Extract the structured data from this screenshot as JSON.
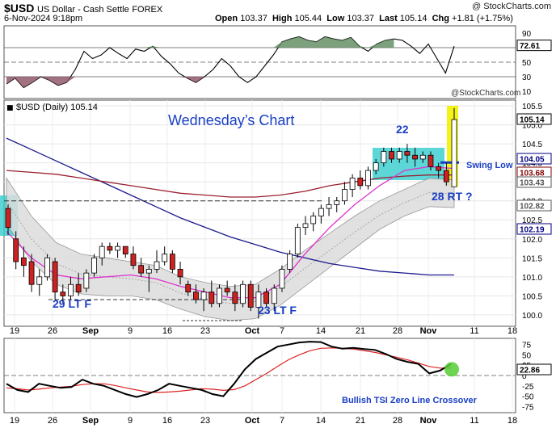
{
  "header": {
    "symbol": "$USD",
    "name": "US Dollar - Cash Settle",
    "exchange": "FOREX",
    "date": "6-Nov-2024 9:18pm",
    "logo": "@ StockCharts.com",
    "open_label": "Open",
    "open": "103.37",
    "high_label": "High",
    "high": "105.44",
    "low_label": "Low",
    "low": "103.37",
    "last_label": "Last",
    "last": "105.14",
    "chg_label": "Chg",
    "chg": "+1.81 (+1.75%)"
  },
  "top_panel": {
    "badge": "72.61",
    "y_ticks": [
      "90",
      "70",
      "50",
      "30",
      "10"
    ],
    "watermark": "@StockCharts.com"
  },
  "main_panel": {
    "legend": "$USD (Daily) 105.14",
    "annotations": {
      "title": "Wednesday’s Chart",
      "a22": "22",
      "swing_low": "Swing Low",
      "rt28": "28 RT ?",
      "ltf29": "29 LT F",
      "ltf23": "23 LT F"
    },
    "price_badges": [
      {
        "value": "105.14",
        "bg": "#ffffff",
        "fg": "#000000"
      },
      {
        "value": "104.05",
        "bg": "#ffffff",
        "fg": "#000080"
      },
      {
        "value": "103.68",
        "bg": "#ffffff",
        "fg": "#800000"
      },
      {
        "value": "103.43",
        "bg": "#ffffff",
        "fg": "#555555"
      },
      {
        "value": "102.82",
        "bg": "#ffffff",
        "fg": "#555555"
      },
      {
        "value": "102.19",
        "bg": "#ffffff",
        "fg": "#000080"
      }
    ]
  },
  "bottom_panel": {
    "badge": "22.86",
    "y_ticks": [
      "75",
      "50",
      "25",
      "0",
      "-25",
      "-50",
      "-75"
    ],
    "annotation": "Bullish TSI Zero Line Crossover"
  },
  "x_axis_labels": [
    "19",
    "26",
    "Sep",
    "9",
    "16",
    "23",
    "Oct",
    "7",
    "14",
    "21",
    "28",
    "Nov",
    "11",
    "18"
  ],
  "colors": {
    "up_candle": "#ffffff",
    "down_candle": "#cc2222",
    "annotation_blue": "#1a3fc4",
    "ma_blue": "#1a1a8c",
    "ma_red": "#9a2030",
    "ma_pink": "#dd33cc",
    "band_fill": "#dcdcdc",
    "box_cyan": "#33cccc",
    "box_yellow": "#f2f200",
    "tsi_green": "#55cc33"
  },
  "chart_data": {
    "type": "candlestick",
    "main_y_ticks": [
      105.5,
      105.0,
      104.5,
      104.0,
      103.5,
      103.0,
      102.5,
      102.0,
      101.5,
      101.0,
      100.5,
      100.0
    ],
    "candles": [
      [
        102.8,
        102.9,
        102.1,
        102.3
      ],
      [
        102.0,
        102.2,
        101.2,
        101.4
      ],
      [
        101.5,
        101.8,
        101.0,
        101.3
      ],
      [
        101.4,
        101.6,
        100.6,
        100.8
      ],
      [
        100.8,
        101.2,
        100.5,
        101.0
      ],
      [
        101.0,
        101.6,
        100.9,
        101.5
      ],
      [
        101.4,
        101.5,
        100.4,
        100.6
      ],
      [
        100.6,
        100.8,
        100.3,
        100.5
      ],
      [
        100.5,
        101.0,
        100.4,
        100.8
      ],
      [
        100.8,
        101.1,
        100.5,
        100.6
      ],
      [
        100.7,
        101.2,
        100.6,
        101.1
      ],
      [
        101.1,
        101.6,
        101.0,
        101.5
      ],
      [
        101.5,
        101.9,
        101.3,
        101.8
      ],
      [
        101.8,
        101.9,
        101.6,
        101.7
      ],
      [
        101.7,
        101.9,
        101.5,
        101.8
      ],
      [
        101.8,
        101.8,
        101.5,
        101.6
      ],
      [
        101.6,
        101.8,
        101.2,
        101.3
      ],
      [
        101.3,
        101.5,
        101.0,
        101.1
      ],
      [
        101.1,
        101.3,
        100.6,
        101.2
      ],
      [
        101.2,
        101.7,
        101.1,
        101.4
      ],
      [
        101.4,
        101.8,
        101.3,
        101.6
      ],
      [
        101.6,
        101.7,
        101.1,
        101.2
      ],
      [
        101.2,
        101.4,
        100.8,
        101.0
      ],
      [
        100.8,
        100.9,
        100.5,
        100.6
      ],
      [
        100.6,
        100.8,
        100.3,
        100.4
      ],
      [
        100.4,
        100.7,
        100.1,
        100.6
      ],
      [
        100.6,
        100.9,
        100.2,
        100.3
      ],
      [
        100.3,
        100.8,
        100.2,
        100.7
      ],
      [
        100.7,
        100.9,
        100.5,
        100.6
      ],
      [
        100.6,
        100.8,
        100.1,
        100.3
      ],
      [
        100.3,
        100.9,
        100.2,
        100.8
      ],
      [
        100.8,
        100.9,
        100.1,
        100.2
      ],
      [
        100.2,
        100.8,
        99.9,
        100.6
      ],
      [
        100.6,
        100.7,
        100.2,
        100.3
      ],
      [
        100.3,
        100.8,
        100.1,
        100.7
      ],
      [
        100.7,
        101.3,
        100.6,
        101.2
      ],
      [
        101.2,
        101.7,
        101.1,
        101.6
      ],
      [
        101.6,
        102.4,
        101.5,
        102.3
      ],
      [
        102.3,
        102.6,
        102.1,
        102.4
      ],
      [
        102.4,
        102.7,
        102.2,
        102.6
      ],
      [
        102.6,
        102.9,
        102.4,
        102.8
      ],
      [
        102.8,
        103.1,
        102.6,
        102.9
      ],
      [
        102.9,
        103.1,
        102.7,
        103.0
      ],
      [
        103.0,
        103.5,
        102.9,
        103.3
      ],
      [
        103.3,
        103.7,
        103.1,
        103.6
      ],
      [
        103.6,
        103.8,
        103.3,
        103.4
      ],
      [
        103.4,
        103.9,
        103.3,
        103.8
      ],
      [
        103.8,
        104.1,
        103.7,
        104.0
      ],
      [
        104.0,
        104.4,
        103.9,
        104.3
      ],
      [
        104.3,
        104.4,
        104.0,
        104.1
      ],
      [
        104.1,
        104.4,
        104.0,
        104.3
      ],
      [
        104.3,
        104.5,
        104.0,
        104.2
      ],
      [
        104.2,
        104.4,
        103.9,
        104.1
      ],
      [
        104.1,
        104.3,
        104.0,
        104.2
      ],
      [
        104.2,
        104.3,
        103.8,
        103.9
      ],
      [
        103.9,
        104.0,
        103.6,
        103.8
      ],
      [
        103.8,
        104.0,
        103.4,
        103.5
      ],
      [
        103.37,
        105.44,
        103.37,
        105.14
      ]
    ],
    "sma_200": [
      104.65,
      104.35,
      104.05,
      103.75,
      103.45,
      103.15,
      102.85,
      102.55,
      102.3,
      102.05,
      101.85,
      101.65,
      101.5,
      101.35,
      101.25,
      101.15,
      101.1,
      101.05,
      101.05
    ],
    "ma_red": [
      103.8,
      103.75,
      103.7,
      103.6,
      103.5,
      103.4,
      103.3,
      103.2,
      103.15,
      103.1,
      103.1,
      103.15,
      103.25,
      103.4,
      103.5,
      103.6,
      103.65,
      103.68,
      103.68
    ],
    "ma_pink": [
      102.2,
      101.5,
      101.05,
      100.95,
      101.0,
      101.05,
      100.95,
      100.75,
      100.6,
      100.45,
      100.45,
      100.8,
      101.6,
      102.3,
      102.9,
      103.4,
      103.8,
      103.9,
      103.85
    ],
    "band_upper": [
      103.6,
      102.6,
      101.9,
      101.6,
      101.5,
      101.4,
      101.3,
      101.0,
      100.85,
      100.75,
      100.8,
      101.2,
      101.7,
      102.15,
      102.6,
      103.0,
      103.3,
      103.6,
      103.55
    ],
    "band_lower": [
      102.4,
      101.4,
      100.8,
      100.55,
      100.5,
      100.5,
      100.4,
      100.15,
      99.95,
      99.85,
      99.9,
      100.25,
      100.75,
      101.25,
      101.75,
      102.25,
      102.6,
      102.85,
      102.82
    ],
    "tsi": [
      -20,
      -35,
      -40,
      -20,
      -25,
      -30,
      -28,
      -10,
      -20,
      -25,
      -35,
      -45,
      -52,
      -45,
      -35,
      -20,
      -25,
      -30,
      -35,
      -45,
      -50,
      -20,
      15,
      40,
      55,
      70,
      75,
      80,
      82,
      81,
      70,
      65,
      67,
      64,
      62,
      52,
      40,
      33,
      28,
      5,
      12,
      28
    ],
    "tsi_signal": [
      -30,
      -32,
      -35,
      -33,
      -30,
      -28,
      -26,
      -22,
      -20,
      -20,
      -24,
      -30,
      -35,
      -40,
      -41,
      -40,
      -38,
      -35,
      -32,
      -33,
      -36,
      -34,
      -25,
      -10,
      5,
      22,
      38,
      50,
      60,
      66,
      67,
      66,
      64,
      60,
      56,
      50,
      44,
      38,
      30,
      22,
      18,
      18
    ],
    "top_indicator": [
      20,
      28,
      15,
      22,
      30,
      25,
      18,
      22,
      40,
      65,
      55,
      60,
      70,
      62,
      55,
      68,
      65,
      72,
      58,
      48,
      35,
      28,
      22,
      30,
      40,
      55,
      45,
      30,
      22,
      30,
      45,
      60,
      78,
      82,
      85,
      80,
      78,
      85,
      82,
      80,
      84,
      72,
      65,
      75,
      80,
      82,
      80,
      72,
      62,
      75,
      55,
      35,
      72
    ]
  }
}
